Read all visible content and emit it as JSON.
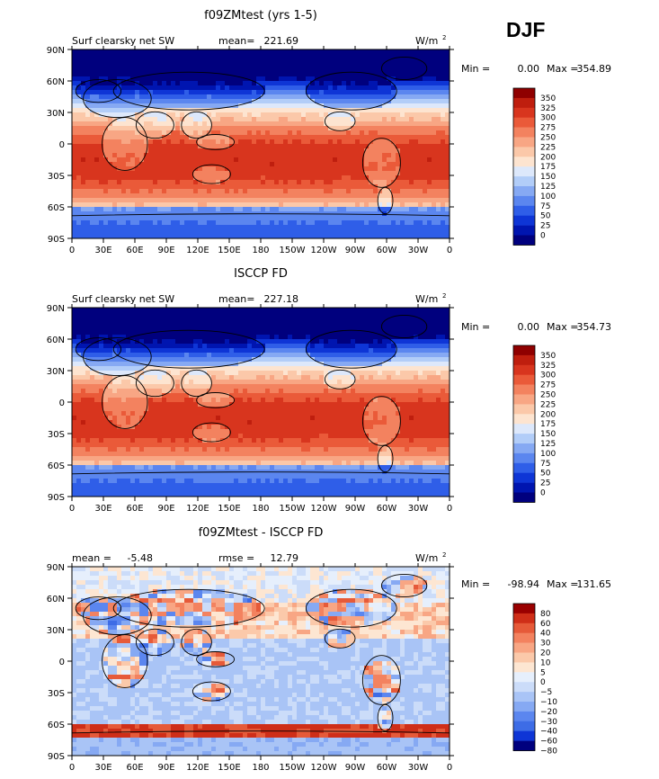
{
  "header": {
    "season": "DJF"
  },
  "lat_labels": [
    "90N",
    "60N",
    "30N",
    "0",
    "30S",
    "60S",
    "90S"
  ],
  "lon_labels": [
    "0",
    "30E",
    "60E",
    "90E",
    "120E",
    "150E",
    "180",
    "150W",
    "120W",
    "90W",
    "60W",
    "30W",
    "0"
  ],
  "colors": {
    "abs_scale": [
      "#00007e",
      "#0015b0",
      "#0e35d6",
      "#2f5ee8",
      "#5b86ef",
      "#86a9f3",
      "#b2cdf8",
      "#dde8fb",
      "#fde4d0",
      "#fbc8a9",
      "#f8a684",
      "#f3825f",
      "#ea5a39",
      "#d8351e",
      "#bf1e0e",
      "#8f0000"
    ],
    "diff_scale": [
      "#00007e",
      "#0e35d6",
      "#3d6ce6",
      "#5b86ef",
      "#86a9f3",
      "#a9c4f6",
      "#cbdcf9",
      "#e6effc",
      "#fde6d2",
      "#fbc9aa",
      "#f8a684",
      "#f3825f",
      "#e65a39",
      "#cf2e18",
      "#9a0000"
    ]
  },
  "panels": [
    {
      "title": "f09ZMtest (yrs 1-5)",
      "left_label": "Surf clearsky net SW",
      "stat_label": "mean=",
      "stat_value": "221.69",
      "units_base": "W/m",
      "units_sup": "2",
      "minmax": {
        "min_label": "Min =",
        "min": "0.00",
        "max_label": "Max =",
        "max": "354.89"
      },
      "colorbar": [
        "350",
        "325",
        "300",
        "275",
        "250",
        "225",
        "200",
        "175",
        "150",
        "125",
        "100",
        "75",
        "50",
        "25",
        "0"
      ]
    },
    {
      "title": "ISCCP FD",
      "left_label": "Surf clearsky net SW",
      "stat_label": "mean=",
      "stat_value": "227.18",
      "units_base": "W/m",
      "units_sup": "2",
      "minmax": {
        "min_label": "Min =",
        "min": "0.00",
        "max_label": "Max =",
        "max": "354.73"
      },
      "colorbar": [
        "350",
        "325",
        "300",
        "275",
        "250",
        "225",
        "200",
        "175",
        "150",
        "125",
        "100",
        "75",
        "50",
        "25",
        "0"
      ]
    },
    {
      "title": "f09ZMtest - ISCCP FD",
      "left_label": "mean =",
      "left_value": "-5.48",
      "stat_label": "rmse =",
      "stat_value": "12.79",
      "units_base": "W/m",
      "units_sup": "2",
      "minmax": {
        "min_label": "Min =",
        "min": "-98.94",
        "max_label": "Max =",
        "max": "131.65"
      },
      "colorbar": [
        "80",
        "60",
        "40",
        "30",
        "20",
        "10",
        "5",
        "0",
        "−5",
        "−10",
        "−20",
        "−30",
        "−40",
        "−60",
        "−80"
      ]
    }
  ]
}
